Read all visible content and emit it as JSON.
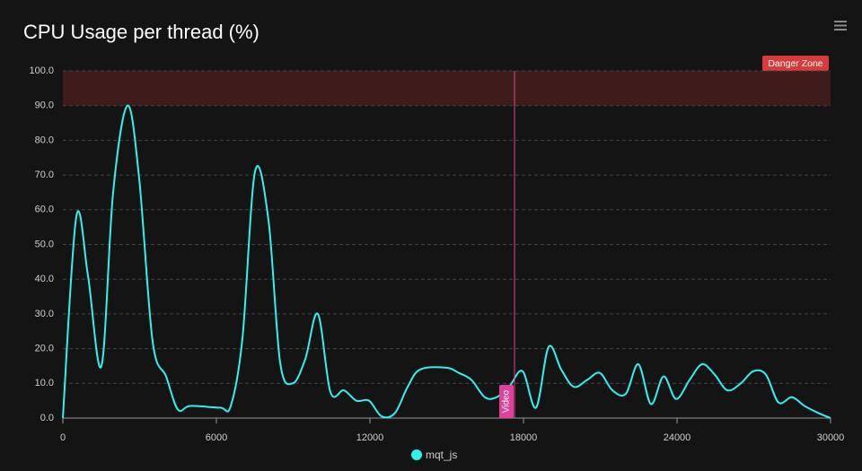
{
  "chart_data": {
    "type": "line",
    "title": "CPU Usage per thread (%)",
    "x": [
      0,
      526,
      982,
      1509,
      1965,
      2526,
      2982,
      3509,
      4035,
      4491,
      4982,
      6140,
      6561,
      7018,
      7509,
      8035,
      8491,
      8982,
      9474,
      9965,
      10456,
      10982,
      11474,
      11965,
      12456,
      12982,
      13474,
      13965,
      14982,
      15474,
      15965,
      16491,
      16947,
      17439,
      17965,
      18491,
      18982,
      19474,
      19965,
      20491,
      20982,
      21474,
      22000,
      22491,
      22982,
      23474,
      23965,
      24491,
      24982,
      25474,
      25965,
      26491,
      26982,
      27474,
      27965,
      28491,
      28982,
      29509,
      30000
    ],
    "series": [
      {
        "name": "mqt_js",
        "color": "#33f0f0",
        "values": [
          0,
          58,
          41,
          15,
          65,
          90,
          69,
          22,
          12,
          2.5,
          3.5,
          3,
          3.5,
          23,
          71,
          57,
          16,
          10,
          17,
          30,
          7.5,
          8,
          5,
          5,
          0.5,
          1.5,
          9,
          14,
          14.5,
          13,
          11,
          6,
          6,
          9,
          13.5,
          3,
          20.5,
          14,
          9,
          11,
          13,
          8,
          7,
          15.5,
          4,
          12,
          5.5,
          11,
          15.5,
          12.5,
          8,
          10,
          13.5,
          12.5,
          4.5,
          6,
          3.5,
          1.5,
          0
        ]
      }
    ],
    "xlim": [
      0,
      30000
    ],
    "xticks": [
      0,
      6000,
      12000,
      18000,
      24000,
      30000
    ],
    "ylim": [
      0,
      100
    ],
    "yticks": [
      {
        "value": 0,
        "label": "0.0"
      },
      {
        "value": 10,
        "label": "10.0"
      },
      {
        "value": 20,
        "label": "20.0"
      },
      {
        "value": 30,
        "label": "30.0"
      },
      {
        "value": 40,
        "label": "40.0"
      },
      {
        "value": 50,
        "label": "50.0"
      },
      {
        "value": 60,
        "label": "60.0"
      },
      {
        "value": 70,
        "label": "70.0"
      },
      {
        "value": 80,
        "label": "80.0"
      },
      {
        "value": 90,
        "label": "90.0"
      },
      {
        "value": 100,
        "label": "100.0"
      }
    ],
    "grid": true,
    "y_bands": [
      {
        "from": 90,
        "to": 100,
        "label": "Danger Zone",
        "color": "#d93a3a"
      }
    ],
    "x_lines": [
      {
        "x": 17650,
        "label": "Video",
        "color": "#e0429a"
      }
    ],
    "legend": "bottom"
  }
}
